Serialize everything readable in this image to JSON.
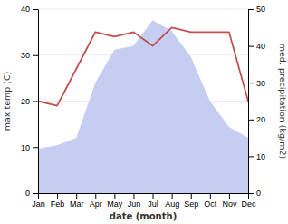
{
  "chart_data": {
    "type": "line",
    "categories": [
      "Jan",
      "Feb",
      "Mar",
      "Apr",
      "May",
      "Jun",
      "Jul",
      "Aug",
      "Sep",
      "Oct",
      "Nov",
      "Dec"
    ],
    "xlabel": "date (month)",
    "ylabel": "max temp (C)",
    "y2label": "med. precipitation (kg/m2)",
    "series": [
      {
        "type": "area",
        "axis": "y2",
        "color": "#c5cef0",
        "values": [
          12,
          13,
          15,
          30,
          39,
          40,
          47,
          44,
          37,
          25,
          18,
          15
        ]
      },
      {
        "type": "line",
        "color": "#c0504d",
        "values": [
          20,
          19,
          27,
          35,
          34,
          35,
          32,
          36,
          35,
          35,
          35,
          20
        ]
      }
    ],
    "ylim": [
      0,
      40
    ],
    "yticks": [
      0,
      10,
      20,
      30,
      40
    ],
    "y2lim": [
      0,
      50
    ],
    "y2ticks": [
      0,
      10,
      20,
      30,
      40,
      50
    ],
    "grid": true
  }
}
